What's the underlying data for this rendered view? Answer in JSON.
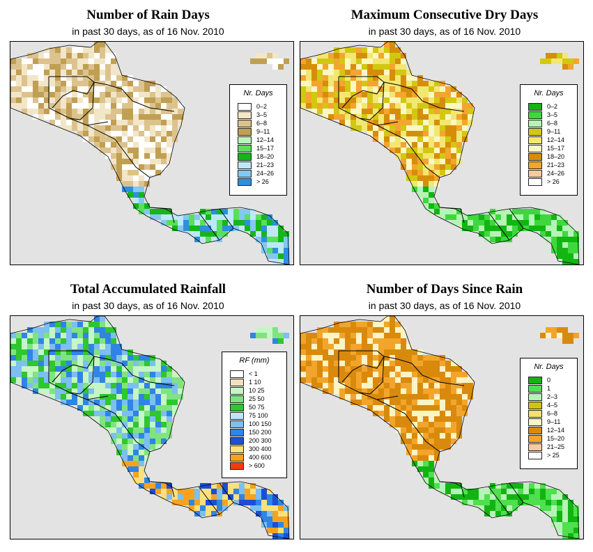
{
  "panels": [
    {
      "id": "rain-days",
      "title": "Number of Rain Days",
      "subtitle": "in past 30 days, as of  16 Nov. 2010",
      "legend": {
        "title": "Nr. Days",
        "classes": [
          {
            "label": "0–2",
            "color": "#ffffff"
          },
          {
            "label": "3–5",
            "color": "#f2e6c9"
          },
          {
            "label": "6–8",
            "color": "#dcc38e"
          },
          {
            "label": "9–11",
            "color": "#c19f52"
          },
          {
            "label": "12–14",
            "color": "#b9f5b9"
          },
          {
            "label": "15–17",
            "color": "#59df59"
          },
          {
            "label": "18–20",
            "color": "#16b51b"
          },
          {
            "label": "21–23",
            "color": "#bde8f7"
          },
          {
            "label": "24–26",
            "color": "#83c8f2"
          },
          {
            "label": "> 26",
            "color": "#2d8fe0"
          }
        ]
      },
      "fill_colors": {
        "north": [
          "#f2e6c9",
          "#dcc38e",
          "#ffffff",
          "#c19f52"
        ],
        "south": [
          "#bde8f7",
          "#83c8f2",
          "#59df59",
          "#16b51b",
          "#2d8fe0"
        ]
      }
    },
    {
      "id": "max-dry-days",
      "title": "Maximum Consecutive Dry Days",
      "subtitle": "in past 30 days, as of  16 Nov. 2010",
      "legend": {
        "title": "Nr. Days",
        "classes": [
          {
            "label": "0–2",
            "color": "#13b513"
          },
          {
            "label": "3–5",
            "color": "#3ed83e"
          },
          {
            "label": "6–8",
            "color": "#b6f3b6"
          },
          {
            "label": "9–11",
            "color": "#d2c811"
          },
          {
            "label": "12–14",
            "color": "#f2e771"
          },
          {
            "label": "15–17",
            "color": "#fbf7c3"
          },
          {
            "label": "18–20",
            "color": "#d68e0a"
          },
          {
            "label": "21–23",
            "color": "#f3a52f"
          },
          {
            "label": "24–26",
            "color": "#f7cc9c"
          },
          {
            "label": "> 26",
            "color": "#ffffff"
          }
        ]
      },
      "fill_colors": {
        "north": [
          "#f2e771",
          "#d68e0a",
          "#d2c811",
          "#fbf7c3",
          "#f3a52f"
        ],
        "south": [
          "#13b513",
          "#3ed83e",
          "#b6f3b6"
        ]
      }
    },
    {
      "id": "total-rainfall",
      "title": "Total Accumulated Rainfall",
      "subtitle": "in past 30 days, as of  16 Nov. 2010",
      "legend": {
        "title": "RF (mm)",
        "classes": [
          {
            "label": "< 1",
            "color": "#ffffff"
          },
          {
            "label": "1  10",
            "color": "#f2e0bf"
          },
          {
            "label": "10  25",
            "color": "#c6f5c6"
          },
          {
            "label": "25  50",
            "color": "#7fe47f"
          },
          {
            "label": "50  75",
            "color": "#2fc62f"
          },
          {
            "label": "75  100",
            "color": "#bfe6f7"
          },
          {
            "label": "100  150",
            "color": "#7cbff0"
          },
          {
            "label": "150  200",
            "color": "#2f84e6"
          },
          {
            "label": "200  300",
            "color": "#1a4fd6"
          },
          {
            "label": "300  400",
            "color": "#fbe07d"
          },
          {
            "label": "400  600",
            "color": "#f7a21e"
          },
          {
            "label": "> 600",
            "color": "#f03c10"
          }
        ]
      },
      "fill_colors": {
        "north": [
          "#2fc62f",
          "#7fe47f",
          "#c6f5c6",
          "#7cbff0",
          "#2f84e6"
        ],
        "south": [
          "#2f84e6",
          "#1a4fd6",
          "#7cbff0",
          "#fbe07d",
          "#f7a21e"
        ]
      }
    },
    {
      "id": "days-since-rain",
      "title": "Number of Days Since Rain",
      "subtitle": "in past 30 days, as of  16 Nov. 2010",
      "legend": {
        "title": "Nr. Days",
        "classes": [
          {
            "label": "0",
            "color": "#12b412"
          },
          {
            "label": "1",
            "color": "#4ee04e"
          },
          {
            "label": "2–3",
            "color": "#b7f3b7"
          },
          {
            "label": "4–5",
            "color": "#cfc410"
          },
          {
            "label": "6–8",
            "color": "#f3e26b"
          },
          {
            "label": "9–11",
            "color": "#fbf4c4"
          },
          {
            "label": "12–14",
            "color": "#d98a0c"
          },
          {
            "label": "15–20",
            "color": "#f3a52b"
          },
          {
            "label": "21–25",
            "color": "#f6caa2"
          },
          {
            "label": "> 25",
            "color": "#ffffff"
          }
        ]
      },
      "fill_colors": {
        "north": [
          "#d98a0c",
          "#d98a0c",
          "#f3a52b",
          "#fbf4c4"
        ],
        "south": [
          "#12b412",
          "#4ee04e",
          "#b7f3b7"
        ]
      }
    }
  ]
}
